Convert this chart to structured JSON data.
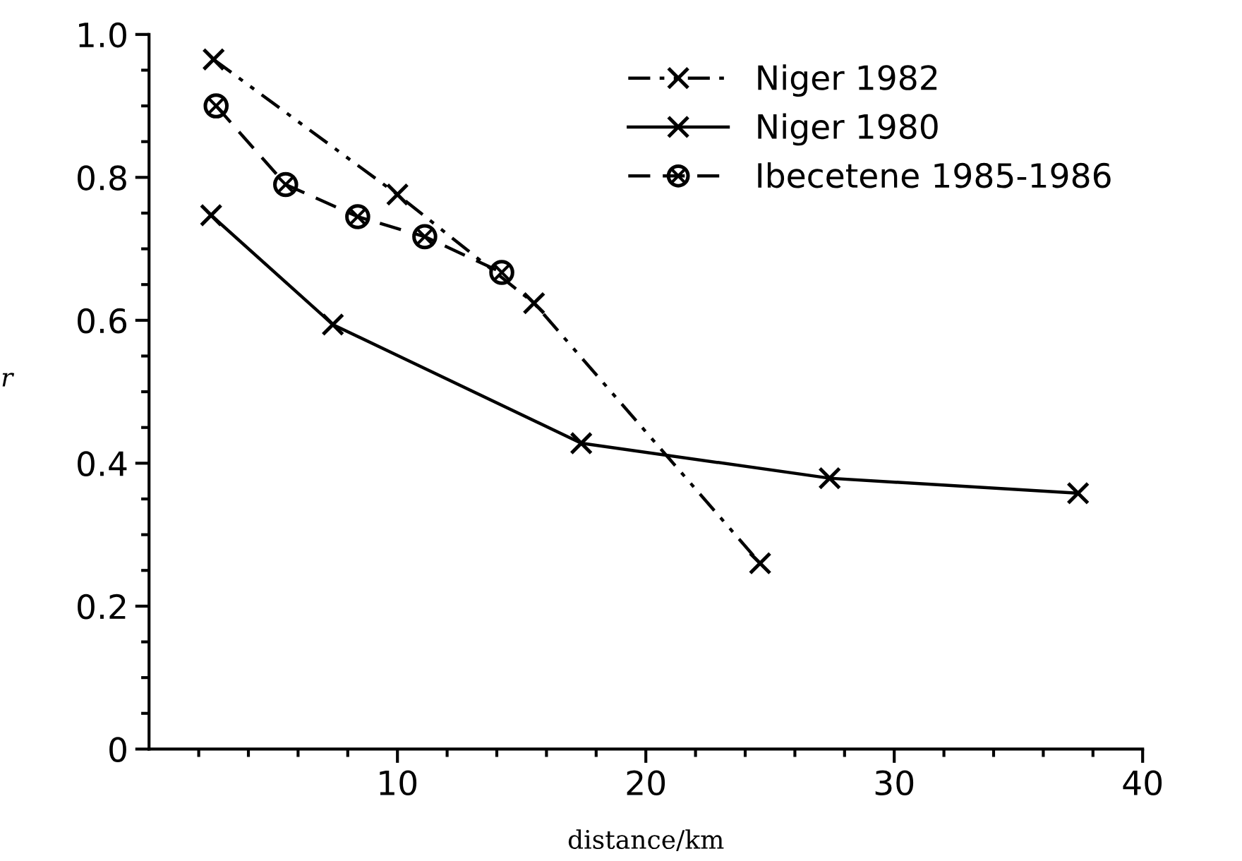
{
  "chart_data": {
    "type": "line",
    "xlabel": "distance/km",
    "ylabel": "r",
    "xlim": [
      0,
      40
    ],
    "ylim": [
      0,
      1
    ],
    "xticks": [
      {
        "value": 2,
        "label": null
      },
      {
        "value": 4,
        "label": null
      },
      {
        "value": 6,
        "label": null
      },
      {
        "value": 8,
        "label": null
      },
      10,
      {
        "value": 12,
        "label": null
      },
      {
        "value": 14,
        "label": null
      },
      {
        "value": 16,
        "label": null
      },
      {
        "value": 18,
        "label": null
      },
      20,
      {
        "value": 22,
        "label": null
      },
      {
        "value": 24,
        "label": null
      },
      {
        "value": 26,
        "label": null
      },
      {
        "value": 28,
        "label": null
      },
      30,
      {
        "value": 32,
        "label": null
      },
      {
        "value": 34,
        "label": null
      },
      {
        "value": 36,
        "label": null
      },
      {
        "value": 38,
        "label": null
      },
      40
    ],
    "yticks": [
      0,
      {
        "value": 0.05,
        "label": null
      },
      {
        "value": 0.1,
        "label": null
      },
      {
        "value": 0.15,
        "label": null
      },
      0.2,
      {
        "value": 0.25,
        "label": null
      },
      {
        "value": 0.3,
        "label": null
      },
      {
        "value": 0.35,
        "label": null
      },
      0.4,
      {
        "value": 0.45,
        "label": null
      },
      {
        "value": 0.5,
        "label": null
      },
      {
        "value": 0.55,
        "label": null
      },
      0.6,
      {
        "value": 0.65,
        "label": null
      },
      {
        "value": 0.7,
        "label": null
      },
      {
        "value": 0.75,
        "label": null
      },
      0.8,
      {
        "value": 0.85,
        "label": null
      },
      {
        "value": 0.9,
        "label": null
      },
      {
        "value": 0.95,
        "label": null
      },
      {
        "value": 1.0,
        "label": "1.0"
      }
    ],
    "legend": "top right",
    "grid": false,
    "series": [
      {
        "name": "Niger 1982",
        "color": "#000000",
        "marker": "cross",
        "line_style": "dashdotdot",
        "x": [
          2.6,
          10,
          15.5,
          24.6
        ],
        "values": [
          0.965,
          0.776,
          0.624,
          0.26
        ]
      },
      {
        "name": "Niger 1980",
        "color": "#000000",
        "marker": "cross",
        "line_style": "solid",
        "x": [
          2.5,
          7.4,
          17.4,
          27.4,
          37.4
        ],
        "values": [
          0.747,
          0.594,
          0.428,
          0.379,
          0.358
        ]
      },
      {
        "name": "Ibecetene 1985-1986",
        "color": "#000000",
        "marker": "circlecross",
        "line_style": "dashed",
        "x": [
          2.7,
          5.5,
          8.4,
          11.1,
          14.2
        ],
        "values": [
          0.9,
          0.79,
          0.745,
          0.717,
          0.667
        ]
      }
    ]
  }
}
